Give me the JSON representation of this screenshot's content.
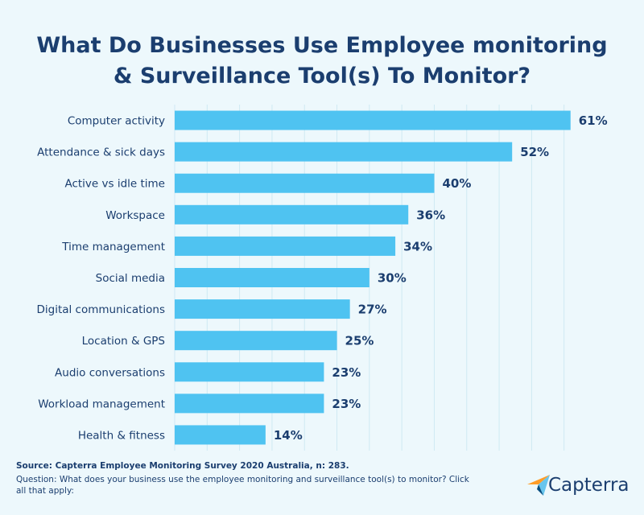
{
  "chart_data": {
    "type": "bar",
    "orientation": "horizontal",
    "title": "What Do Businesses Use Employee monitoring & Surveillance Tool(s) To Monitor?",
    "categories": [
      "Computer activity",
      "Attendance & sick days",
      "Active vs idle time",
      "Workspace",
      "Time management",
      "Social media",
      "Digital communications",
      "Location & GPS",
      "Audio conversations",
      "Workload management",
      "Health & fitness"
    ],
    "values": [
      61,
      52,
      40,
      36,
      34,
      30,
      27,
      25,
      23,
      23,
      14
    ],
    "value_labels": [
      "61%",
      "52%",
      "40%",
      "36%",
      "34%",
      "30%",
      "27%",
      "25%",
      "23%",
      "23%",
      "14%"
    ],
    "color": "#4fc3f1",
    "xlim": [
      0,
      65
    ],
    "xticks": [
      0,
      5,
      10,
      15,
      20,
      25,
      30,
      35,
      40,
      45,
      50,
      55,
      60
    ],
    "grid": true,
    "source": "Source: Capterra Employee Monitoring Survey 2020 Australia, n: 283.",
    "note": "Question: What does your business use the employee monitoring and surveillance tool(s) to monitor? Click all that apply:",
    "brand": "Capterra"
  }
}
